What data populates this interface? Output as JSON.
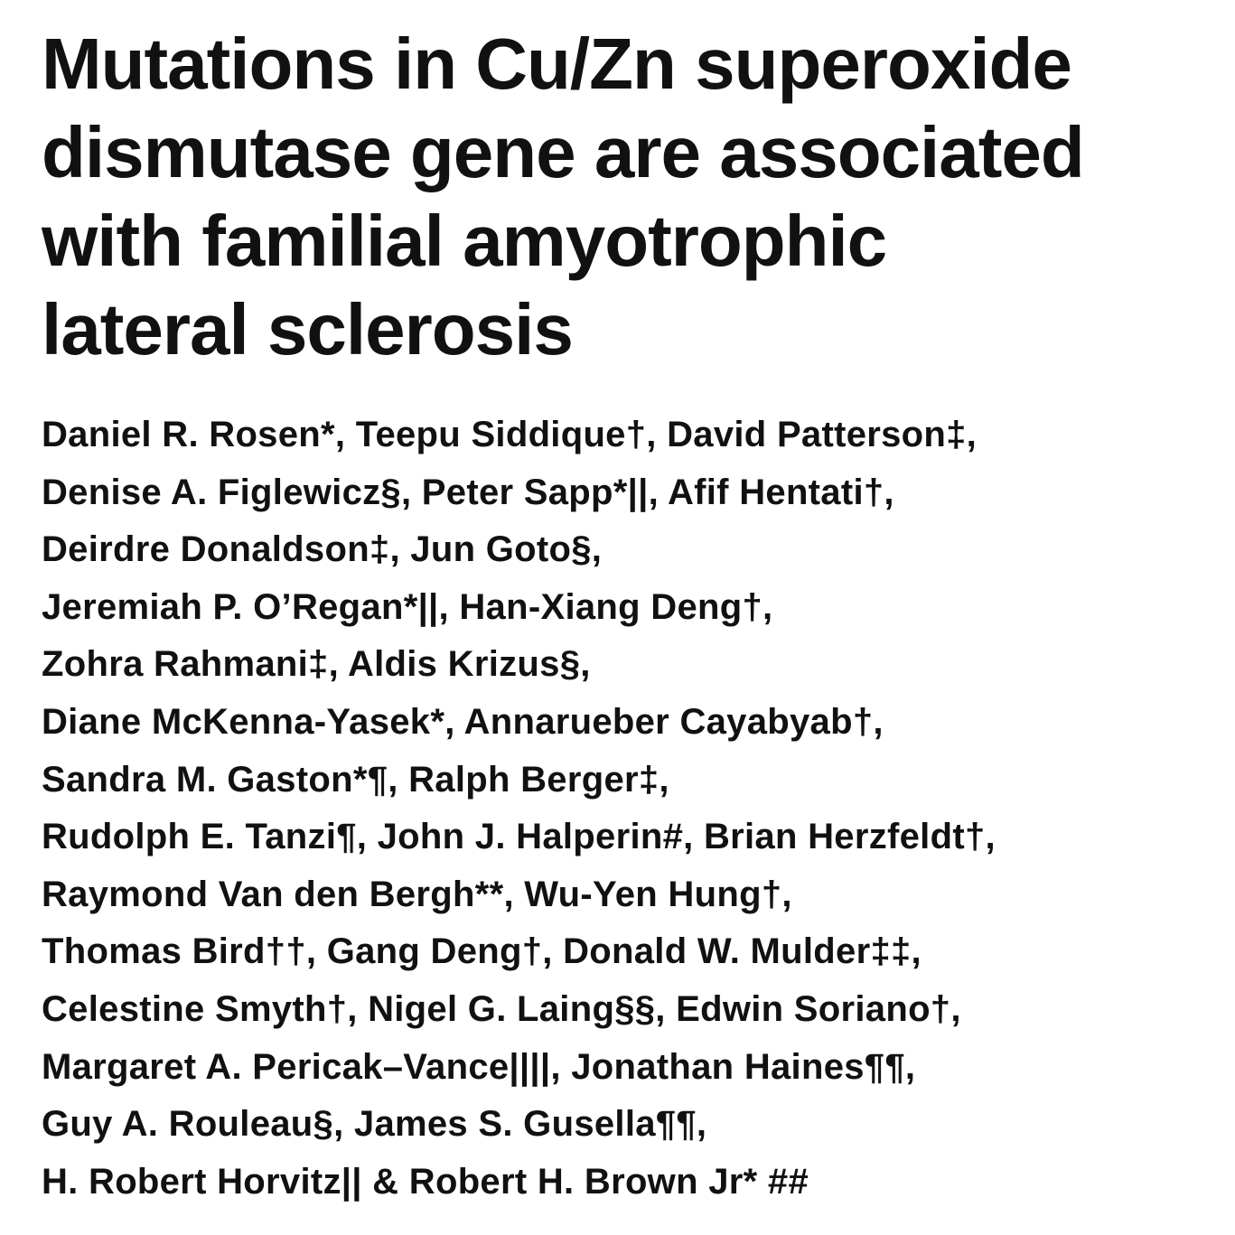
{
  "article": {
    "title_lines": [
      "Mutations in Cu/Zn superoxide",
      "dismutase gene are associated",
      "with familial amyotrophic",
      "lateral sclerosis"
    ],
    "author_lines": [
      "Daniel R. Rosen*, Teepu Siddique†, David Patterson‡,",
      "Denise A. Figlewicz§, Peter Sapp*||, Afif Hentati†,",
      "Deirdre Donaldson‡, Jun Goto§,",
      "Jeremiah P. O’Regan*||, Han-Xiang Deng†,",
      "Zohra Rahmani‡, Aldis Krizus§,",
      "Diane McKenna-Yasek*, Annarueber Cayabyab†,",
      "Sandra M. Gaston*¶, Ralph Berger‡,",
      "Rudolph E. Tanzi¶, John J. Halperin#, Brian Herzfeldt†,",
      "Raymond Van den Bergh**, Wu-Yen Hung†,",
      "Thomas Bird††, Gang Deng†, Donald W. Mulder‡‡,",
      "Celestine Smyth†, Nigel G. Laing§§, Edwin Soriano†,",
      "Margaret A. Pericak–Vance||||, Jonathan Haines¶¶,",
      "Guy A. Rouleau§, James S. Gusella¶¶,",
      "H. Robert Horvitz|| & Robert H. Brown Jr* ##"
    ]
  }
}
